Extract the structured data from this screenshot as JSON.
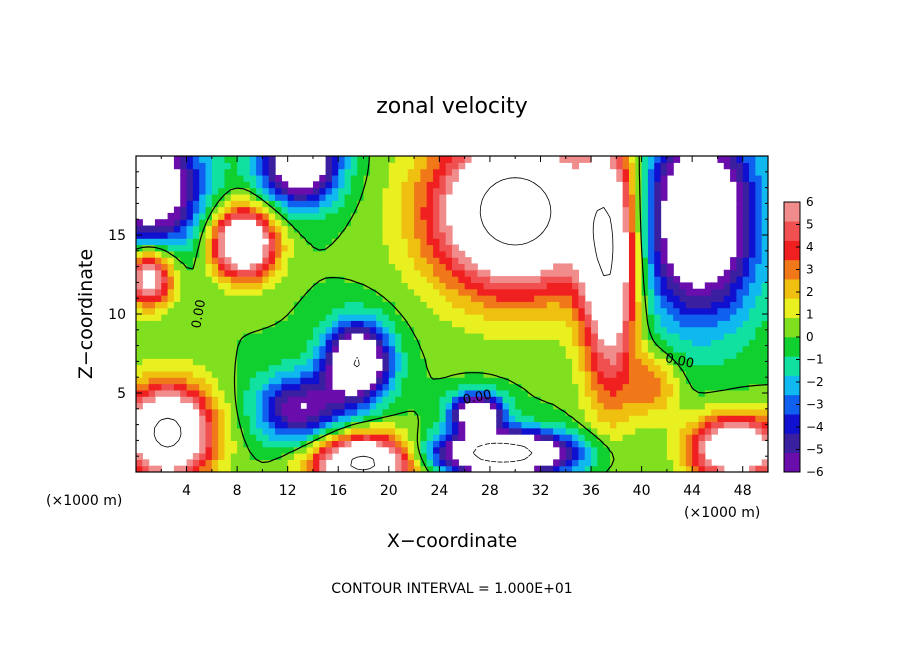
{
  "chart_data": {
    "type": "heatmap",
    "title": "zonal velocity",
    "xlabel": "X−coordinate",
    "ylabel": "Z−coordinate",
    "x_unit": "(×1000 m)",
    "y_unit": "(×1000 m)",
    "xlim": [
      0,
      50
    ],
    "ylim": [
      0,
      20
    ],
    "x_ticks": [
      4,
      8,
      12,
      16,
      20,
      24,
      28,
      32,
      36,
      40,
      44,
      48
    ],
    "x_tick_labels": [
      "4",
      "8",
      "12",
      "16",
      "20",
      "24",
      "28",
      "32",
      "36",
      "40",
      "44",
      "48"
    ],
    "y_ticks": [
      5,
      10,
      15
    ],
    "y_tick_labels": [
      "5",
      "10",
      "15"
    ],
    "colorbar": {
      "min": -6,
      "max": 6,
      "ticks": [
        6,
        5,
        4,
        3,
        2,
        1,
        0,
        -1,
        -2,
        -3,
        -4,
        -5,
        -6
      ],
      "tick_labels": [
        "6",
        "5",
        "4",
        "3",
        "2",
        "1",
        "0",
        "−1",
        "−2",
        "−3",
        "−4",
        "−5",
        "−6"
      ],
      "colors": [
        "#6a0dad",
        "#3a1fa0",
        "#1010d0",
        "#1060f0",
        "#10b8f0",
        "#10e0a0",
        "#10d030",
        "#80e020",
        "#e8f020",
        "#f0c010",
        "#f07818",
        "#f02020",
        "#f05050",
        "#f08c8c"
      ],
      "over_color": "#ffffff",
      "under_color": "#ffffff"
    },
    "contour_labels": [
      "0.00",
      "0.00",
      "0.00"
    ],
    "field_sources": [
      {
        "x": 8.5,
        "z": 14.5,
        "amp": 10,
        "sx": 2.5,
        "sz": 2.2
      },
      {
        "x": 17.5,
        "z": 7.0,
        "amp": -10,
        "sx": 2.5,
        "sz": 2.4
      },
      {
        "x": 30.0,
        "z": 16.5,
        "amp": 12,
        "sx": 6.5,
        "sz": 5.0
      },
      {
        "x": 37.5,
        "z": 13.0,
        "amp": 9,
        "sx": 2.2,
        "sz": 8.0
      },
      {
        "x": 27.0,
        "z": 3.8,
        "amp": -9,
        "sx": 2.0,
        "sz": 1.2
      },
      {
        "x": 29.0,
        "z": 1.2,
        "amp": -12,
        "sx": 5.5,
        "sz": 1.4
      },
      {
        "x": 18.0,
        "z": 0.6,
        "amp": 11,
        "sx": 4.0,
        "sz": 1.8
      },
      {
        "x": 2.5,
        "z": 2.5,
        "amp": 11,
        "sx": 3.5,
        "sz": 3.0
      },
      {
        "x": 1.0,
        "z": 18.0,
        "amp": -9,
        "sx": 4.0,
        "sz": 4.0
      },
      {
        "x": 1.0,
        "z": 12.5,
        "amp": 8,
        "sx": 2.0,
        "sz": 2.0
      },
      {
        "x": 13.0,
        "z": 19.5,
        "amp": -9,
        "sx": 3.0,
        "sz": 2.5
      },
      {
        "x": 44.5,
        "z": 16.0,
        "amp": -10,
        "sx": 4.5,
        "sz": 6.0
      },
      {
        "x": 47.5,
        "z": 1.5,
        "amp": 10,
        "sx": 3.5,
        "sz": 2.0
      },
      {
        "x": 13.0,
        "z": 4.0,
        "amp": -6,
        "sx": 3.5,
        "sz": 2.2
      },
      {
        "x": 41.0,
        "z": 5.5,
        "amp": 3,
        "sx": 2.0,
        "sz": 2.0
      }
    ],
    "grid": false
  },
  "footer": {
    "contour_interval_text": "CONTOUR INTERVAL = 1.000E+01"
  }
}
